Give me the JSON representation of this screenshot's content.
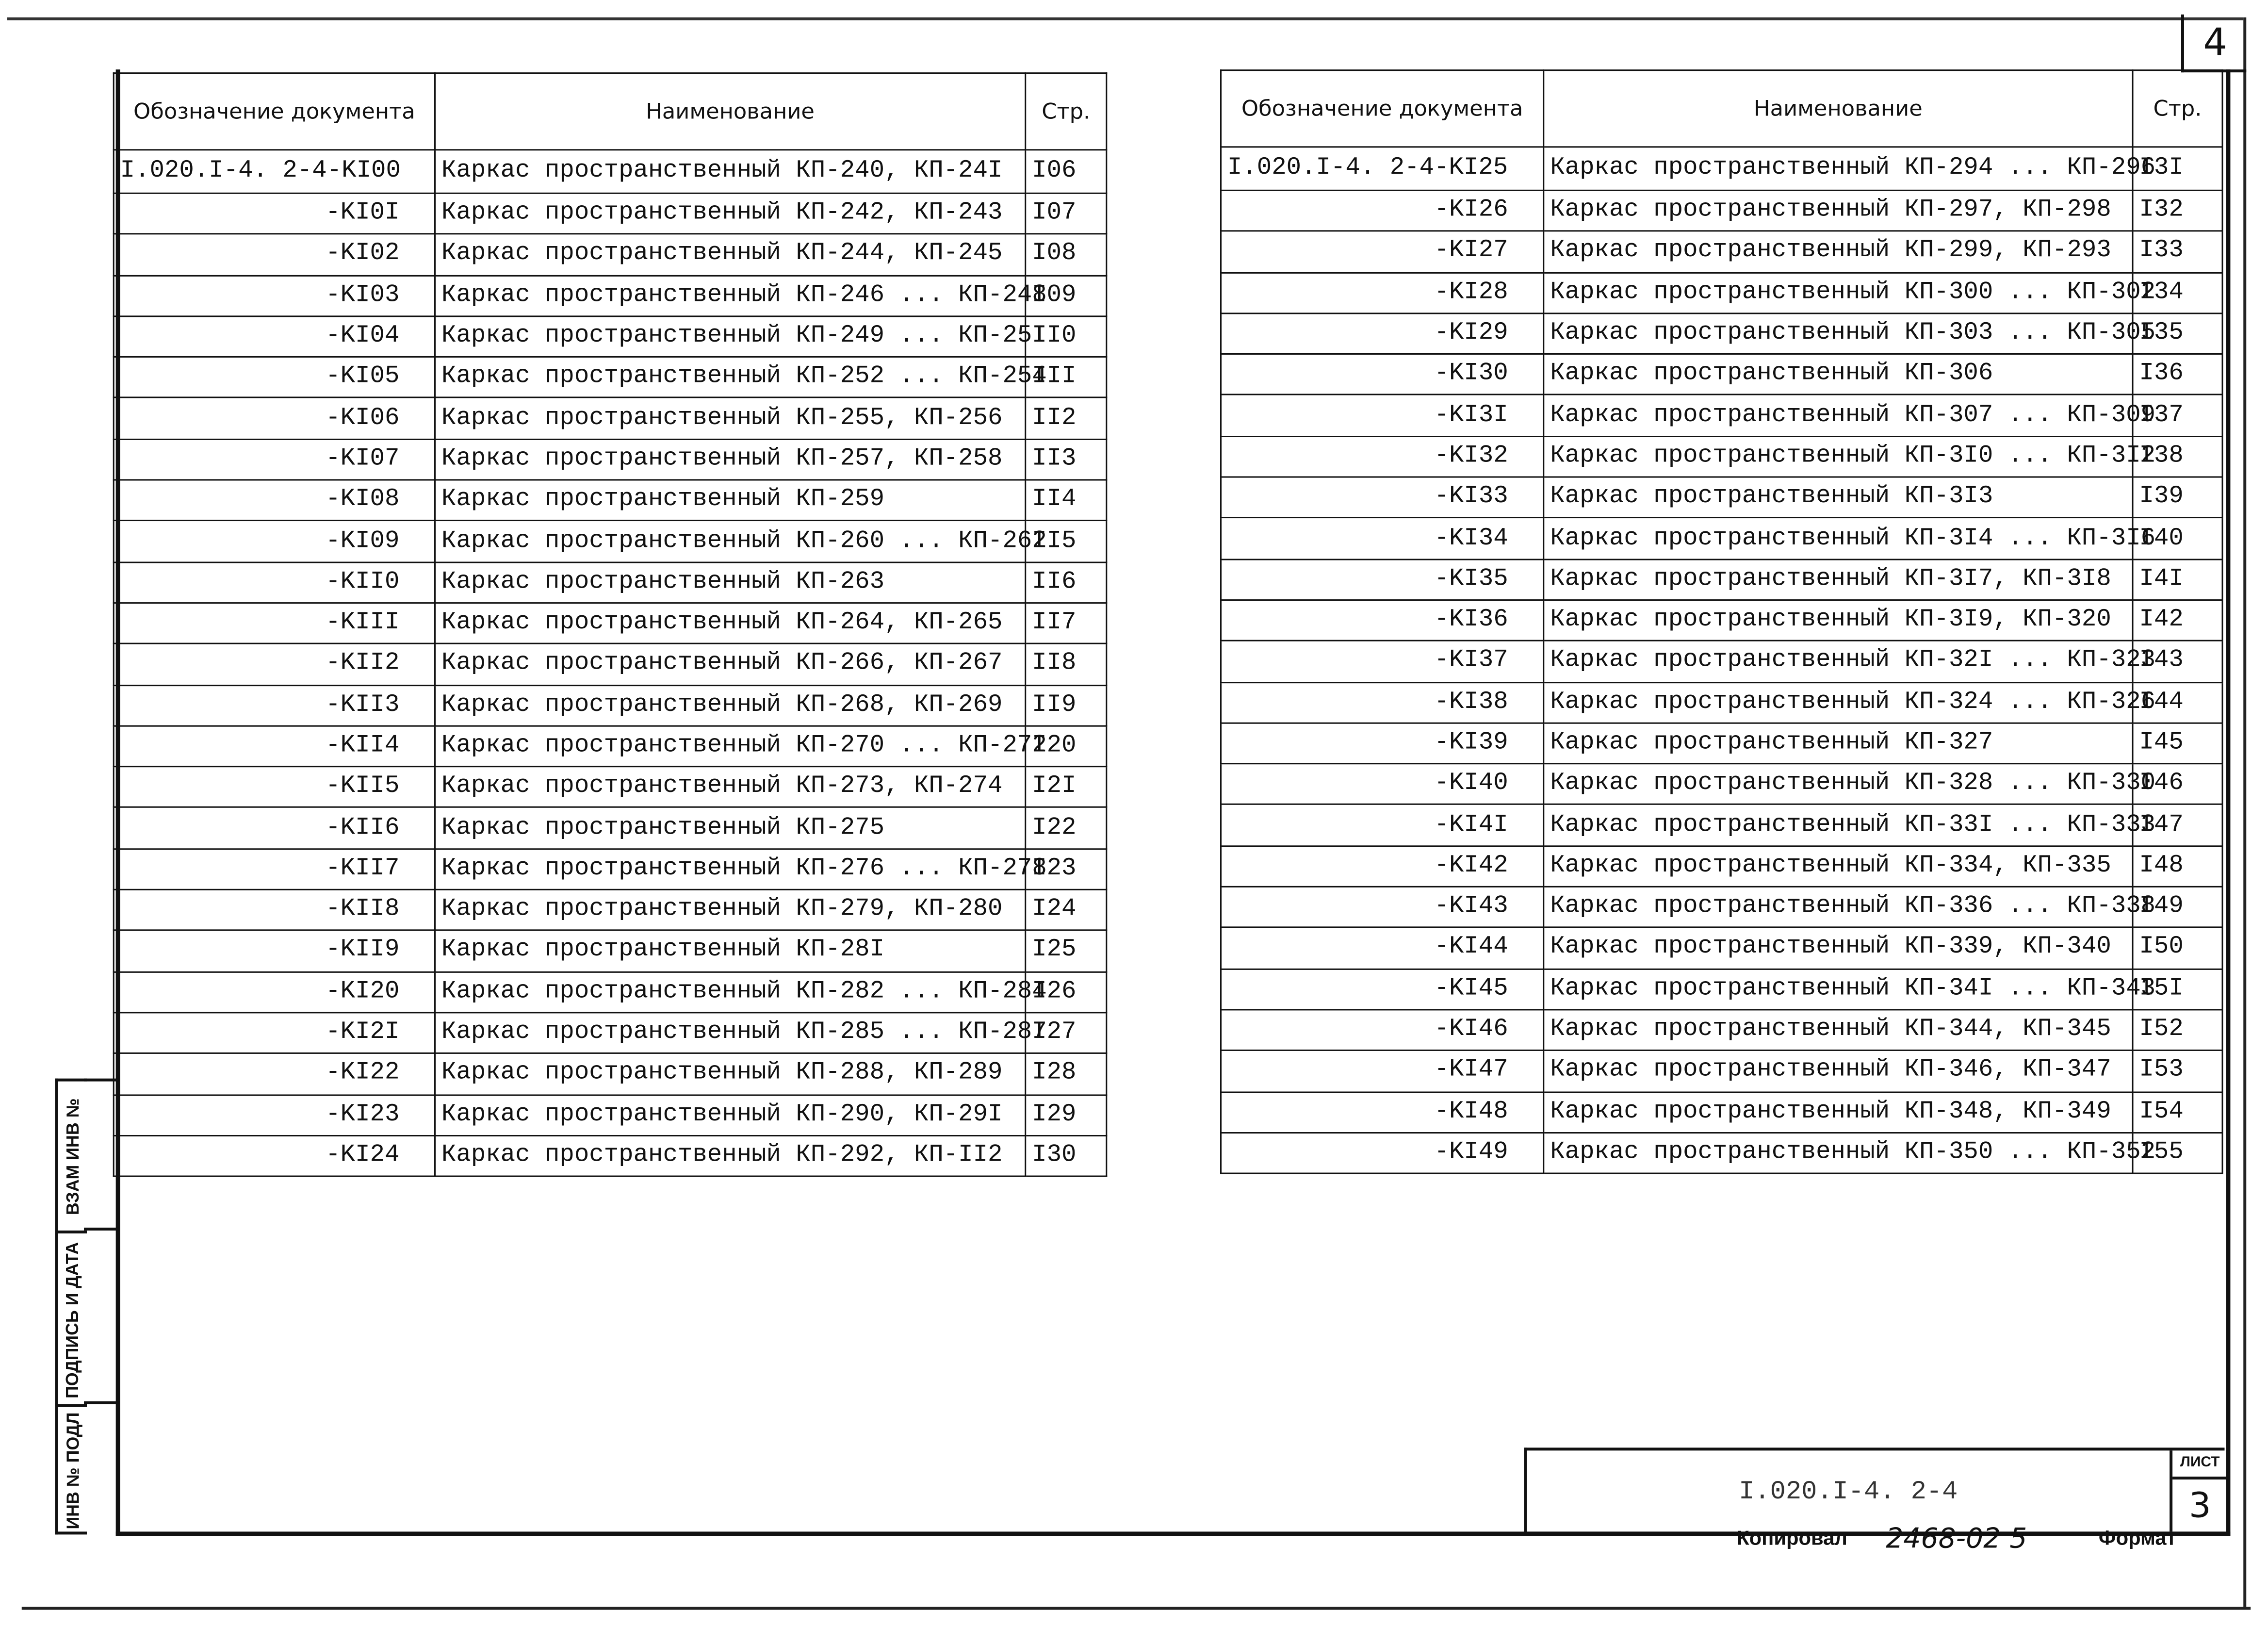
{
  "sheet_number": "4",
  "columns": {
    "designation": "Обозначение документа",
    "name": "Наименование",
    "page": "Стр."
  },
  "left_table": [
    {
      "code": "I.020.I-4. 2-4-KI00",
      "name": "Каркас пространственный КП-240, КП-24I",
      "page": "I06"
    },
    {
      "code": "-KI0I",
      "name": "Каркас пространственный КП-242, КП-243",
      "page": "I07"
    },
    {
      "code": "-KI02",
      "name": "Каркас пространственный КП-244, КП-245",
      "page": "I08"
    },
    {
      "code": "-KI03",
      "name": "Каркас пространственный КП-246 ... КП-248",
      "page": "I09"
    },
    {
      "code": "-KI04",
      "name": "Каркас пространственный КП-249 ... КП-25I",
      "page": "II0"
    },
    {
      "code": "-KI05",
      "name": "Каркас пространственный КП-252 ... КП-254",
      "page": "III"
    },
    {
      "code": "-KI06",
      "name": "Каркас пространственный КП-255, КП-256",
      "page": "II2"
    },
    {
      "code": "-KI07",
      "name": "Каркас пространственный КП-257, КП-258",
      "page": "II3"
    },
    {
      "code": "-KI08",
      "name": "Каркас пространственный КП-259",
      "page": "II4"
    },
    {
      "code": "-KI09",
      "name": "Каркас пространственный КП-260 ... КП-262",
      "page": "II5"
    },
    {
      "code": "-KII0",
      "name": "Каркас пространственный КП-263",
      "page": "II6"
    },
    {
      "code": "-KIII",
      "name": "Каркас пространственный КП-264, КП-265",
      "page": "II7"
    },
    {
      "code": "-KII2",
      "name": "Каркас пространственный КП-266, КП-267",
      "page": "II8"
    },
    {
      "code": "-KII3",
      "name": "Каркас пространственный КП-268, КП-269",
      "page": "II9"
    },
    {
      "code": "-KII4",
      "name": "Каркас пространственный КП-270 ... КП-272",
      "page": "I20"
    },
    {
      "code": "-KII5",
      "name": "Каркас пространственный КП-273, КП-274",
      "page": "I2I"
    },
    {
      "code": "-KII6",
      "name": "Каркас пространственный КП-275",
      "page": "I22"
    },
    {
      "code": "-KII7",
      "name": "Каркас пространственный КП-276 ... КП-278",
      "page": "I23"
    },
    {
      "code": "-KII8",
      "name": "Каркас пространственный КП-279, КП-280",
      "page": "I24"
    },
    {
      "code": "-KII9",
      "name": "Каркас пространственный КП-28I",
      "page": "I25"
    },
    {
      "code": "-KI20",
      "name": "Каркас пространственный КП-282 ... КП-284",
      "page": "I26"
    },
    {
      "code": "-KI2I",
      "name": "Каркас пространственный КП-285 ... КП-287",
      "page": "I27"
    },
    {
      "code": "-KI22",
      "name": "Каркас пространственный КП-288, КП-289",
      "page": "I28"
    },
    {
      "code": "-KI23",
      "name": "Каркас пространственный КП-290, КП-29I",
      "page": "I29"
    },
    {
      "code": "-KI24",
      "name": "Каркас пространственный КП-292, КП-II2",
      "page": "I30"
    }
  ],
  "right_table": [
    {
      "code": "I.020.I-4. 2-4-KI25",
      "name": "Каркас пространственный КП-294 ... КП-296",
      "page": "I3I"
    },
    {
      "code": "-KI26",
      "name": "Каркас пространственный КП-297, КП-298",
      "page": "I32"
    },
    {
      "code": "-KI27",
      "name": "Каркас пространственный КП-299, КП-293",
      "page": "I33"
    },
    {
      "code": "-KI28",
      "name": "Каркас пространственный КП-300 ... КП-302",
      "page": "I34"
    },
    {
      "code": "-KI29",
      "name": "Каркас пространственный КП-303 ... КП-305",
      "page": "I35"
    },
    {
      "code": "-KI30",
      "name": "Каркас пространственный КП-306",
      "page": "I36"
    },
    {
      "code": "-KI3I",
      "name": "Каркас пространственный КП-307 ... КП-309",
      "page": "I37"
    },
    {
      "code": "-KI32",
      "name": "Каркас пространственный КП-3I0 ... КП-3I2",
      "page": "I38"
    },
    {
      "code": "-KI33",
      "name": "Каркас пространственный КП-3I3",
      "page": "I39"
    },
    {
      "code": "-KI34",
      "name": "Каркас пространственный КП-3I4 ... КП-3I6",
      "page": "I40"
    },
    {
      "code": "-KI35",
      "name": "Каркас пространственный КП-3I7, КП-3I8",
      "page": "I4I"
    },
    {
      "code": "-KI36",
      "name": "Каркас пространственный КП-3I9, КП-320",
      "page": "I42"
    },
    {
      "code": "-KI37",
      "name": "Каркас пространственный КП-32I ... КП-323",
      "page": "I43"
    },
    {
      "code": "-KI38",
      "name": "Каркас пространственный КП-324 ... КП-326",
      "page": "I44"
    },
    {
      "code": "-KI39",
      "name": "Каркас пространственный КП-327",
      "page": "I45"
    },
    {
      "code": "-KI40",
      "name": "Каркас пространственный КП-328 ... КП-330",
      "page": "I46"
    },
    {
      "code": "-KI4I",
      "name": "Каркас пространственный КП-33I ... КП-333",
      "page": "I47"
    },
    {
      "code": "-KI42",
      "name": "Каркас пространственный КП-334, КП-335",
      "page": "I48"
    },
    {
      "code": "-KI43",
      "name": "Каркас пространственный КП-336 ... КП-338",
      "page": "I49"
    },
    {
      "code": "-KI44",
      "name": "Каркас пространственный КП-339, КП-340",
      "page": "I50"
    },
    {
      "code": "-KI45",
      "name": "Каркас пространственный КП-34I ... КП-343",
      "page": "I5I"
    },
    {
      "code": "-KI46",
      "name": "Каркас пространственный КП-344, КП-345",
      "page": "I52"
    },
    {
      "code": "-KI47",
      "name": "Каркас пространственный КП-346, КП-347",
      "page": "I53"
    },
    {
      "code": "-KI48",
      "name": "Каркас пространственный КП-348, КП-349",
      "page": "I54"
    },
    {
      "code": "-KI49",
      "name": "Каркас пространственный КП-350 ... КП-352",
      "page": "I55"
    }
  ],
  "side_strip": {
    "replacement_inv": "ВЗАМ ИНВ №",
    "signature_date": "ПОДПИСЬ И ДАТА",
    "original_inv": "ИНВ № ПОДЛ"
  },
  "stamp": {
    "document_code": "I.020.I-4. 2-4",
    "sheet_label": "ЛИСТ",
    "sheet_value": "3"
  },
  "footer": {
    "copied_label": "Копировал",
    "copied_value": "2468-02 5",
    "format_label": "Формат"
  }
}
